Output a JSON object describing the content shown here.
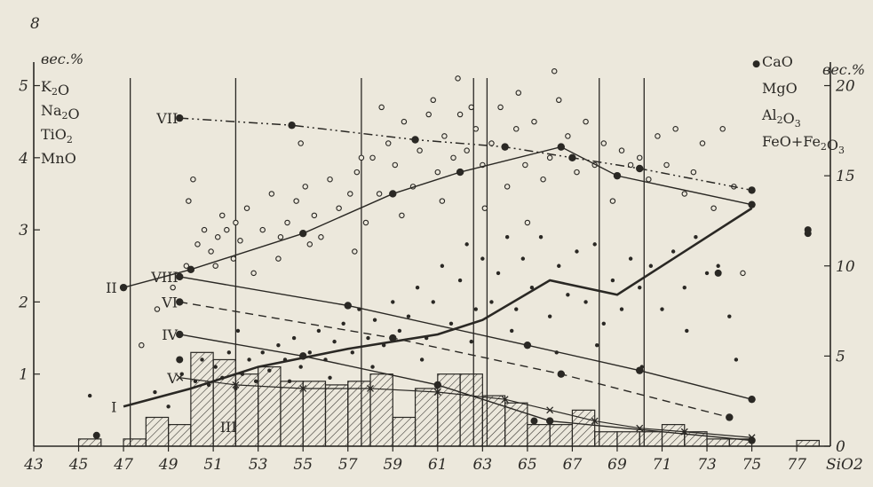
{
  "figure": {
    "page_number": "8"
  },
  "chart_data": {
    "type": "scatter",
    "xlabel": "SiO2",
    "x_ticks": [
      "43",
      "45",
      "47",
      "49",
      "51",
      "53",
      "55",
      "57",
      "59",
      "61",
      "63",
      "65",
      "67",
      "69",
      "71",
      "73",
      "75",
      "77"
    ],
    "xlim": [
      43,
      78.5
    ],
    "y_left": {
      "unit": "вес.%",
      "ticks": [
        "1",
        "2",
        "3",
        "4",
        "5"
      ],
      "ylim": [
        0,
        5.4
      ],
      "legend": [
        "K2O",
        "Na2O",
        "TiO2",
        "MnO"
      ]
    },
    "y_right": {
      "unit": "вес.%",
      "ticks": [
        "0",
        "5",
        "10",
        "15",
        "20"
      ],
      "ylim": [
        0,
        21.6
      ],
      "legend": [
        "CaO",
        "MgO",
        "Al2O3",
        "FeO+Fe2O3"
      ]
    },
    "vertical_lines_x": [
      47.3,
      52.0,
      57.6,
      62.6,
      63.2,
      68.2,
      70.2
    ],
    "histogram": {
      "label": "III",
      "bin_width": 1,
      "bins_x": [
        45.5,
        47.5,
        48.5,
        49.5,
        50.5,
        51.5,
        52.5,
        53.5,
        54.5,
        55.5,
        56.5,
        57.5,
        58.5,
        59.5,
        60.5,
        61.5,
        62.5,
        63.5,
        64.5,
        65.5,
        66.5,
        67.5,
        68.5,
        69.5,
        70.5,
        71.5,
        72.5,
        73.5,
        74.5,
        77.5
      ],
      "values": [
        0.1,
        0.1,
        0.4,
        0.3,
        1.3,
        1.2,
        1.0,
        1.1,
        0.9,
        0.9,
        0.85,
        0.9,
        1.0,
        0.4,
        0.8,
        1.0,
        1.0,
        0.7,
        0.6,
        0.3,
        0.3,
        0.5,
        0.2,
        0.2,
        0.2,
        0.3,
        0.2,
        0.1,
        0.1,
        0.08
      ]
    },
    "series": [
      {
        "name": "I",
        "axis": "left",
        "style": "bold",
        "x": [
          47,
          50,
          53,
          57,
          61,
          63,
          66,
          69,
          75
        ],
        "y": [
          0.55,
          0.8,
          1.1,
          1.35,
          1.55,
          1.75,
          2.3,
          2.1,
          3.3
        ]
      },
      {
        "name": "II",
        "axis": "left",
        "style": "solid",
        "x": [
          47,
          50,
          55,
          59,
          62,
          66.5,
          69,
          75
        ],
        "y": [
          2.2,
          2.45,
          2.95,
          3.5,
          3.8,
          4.15,
          3.75,
          3.35
        ]
      },
      {
        "name": "IV",
        "axis": "left",
        "style": "solid",
        "x": [
          49.5,
          55,
          61,
          66,
          75
        ],
        "y": [
          1.55,
          1.25,
          0.85,
          0.35,
          0.08
        ]
      },
      {
        "name": "V",
        "axis": "left",
        "style": "cross",
        "x": [
          49.5,
          52,
          55,
          58,
          61,
          64,
          66,
          68,
          70,
          72,
          75
        ],
        "y": [
          0.95,
          0.85,
          0.8,
          0.8,
          0.75,
          0.65,
          0.5,
          0.35,
          0.25,
          0.2,
          0.12
        ]
      },
      {
        "name": "VI",
        "axis": "left",
        "style": "dashed",
        "x": [
          49.5,
          59,
          66.5,
          74
        ],
        "y": [
          2.0,
          1.5,
          1.0,
          0.4
        ]
      },
      {
        "name": "VII",
        "axis": "left",
        "style": "dashdot",
        "x": [
          49.5,
          54.5,
          60,
          64,
          67,
          70,
          75
        ],
        "y": [
          4.55,
          4.45,
          4.25,
          4.15,
          4.0,
          3.85,
          3.55
        ]
      },
      {
        "name": "VIII",
        "axis": "left",
        "style": "solid",
        "x": [
          49.5,
          57,
          65,
          70,
          75
        ],
        "y": [
          2.35,
          1.95,
          1.4,
          1.05,
          0.65
        ]
      }
    ],
    "scatter_open": [
      [
        47.8,
        1.4
      ],
      [
        48.5,
        1.9
      ],
      [
        49.2,
        2.2
      ],
      [
        49.8,
        2.5
      ],
      [
        49.9,
        3.4
      ],
      [
        50.3,
        2.8
      ],
      [
        50.6,
        3.0
      ],
      [
        50.9,
        2.7
      ],
      [
        51.2,
        2.9
      ],
      [
        51.4,
        3.2
      ],
      [
        51.6,
        3.0
      ],
      [
        51.9,
        2.6
      ],
      [
        52.2,
        2.85
      ],
      [
        52.5,
        3.3
      ],
      [
        52.8,
        2.4
      ],
      [
        53.2,
        3.0
      ],
      [
        53.6,
        3.5
      ],
      [
        54.0,
        2.9
      ],
      [
        54.3,
        3.1
      ],
      [
        54.7,
        3.4
      ],
      [
        55.1,
        3.6
      ],
      [
        55.5,
        3.2
      ],
      [
        55.8,
        2.9
      ],
      [
        56.2,
        3.7
      ],
      [
        56.6,
        3.3
      ],
      [
        57.1,
        3.5
      ],
      [
        57.4,
        3.8
      ],
      [
        57.8,
        3.1
      ],
      [
        58.1,
        4.0
      ],
      [
        58.4,
        3.5
      ],
      [
        58.8,
        4.2
      ],
      [
        59.1,
        3.9
      ],
      [
        59.5,
        4.5
      ],
      [
        59.9,
        3.6
      ],
      [
        60.2,
        4.1
      ],
      [
        60.6,
        4.6
      ],
      [
        61.0,
        3.8
      ],
      [
        61.3,
        4.3
      ],
      [
        61.7,
        4.0
      ],
      [
        62.0,
        4.6
      ],
      [
        62.3,
        4.1
      ],
      [
        62.7,
        4.4
      ],
      [
        63.0,
        3.9
      ],
      [
        63.4,
        4.2
      ],
      [
        63.8,
        4.7
      ],
      [
        64.1,
        3.6
      ],
      [
        64.5,
        4.4
      ],
      [
        64.9,
        3.9
      ],
      [
        65.3,
        4.5
      ],
      [
        65.7,
        3.7
      ],
      [
        66.0,
        4.0
      ],
      [
        66.4,
        4.8
      ],
      [
        66.8,
        4.3
      ],
      [
        67.2,
        3.8
      ],
      [
        67.6,
        4.5
      ],
      [
        68.0,
        3.9
      ],
      [
        68.4,
        4.2
      ],
      [
        68.8,
        3.4
      ],
      [
        69.2,
        4.1
      ],
      [
        69.6,
        3.9
      ],
      [
        70.0,
        4.0
      ],
      [
        70.4,
        3.7
      ],
      [
        70.8,
        4.3
      ],
      [
        71.2,
        3.9
      ],
      [
        71.6,
        4.4
      ],
      [
        72.0,
        3.5
      ],
      [
        72.4,
        3.8
      ],
      [
        72.8,
        4.2
      ],
      [
        73.3,
        3.3
      ],
      [
        73.7,
        4.4
      ],
      [
        74.2,
        3.6
      ],
      [
        74.6,
        2.4
      ],
      [
        52.0,
        3.1
      ],
      [
        53.9,
        2.6
      ],
      [
        55.3,
        2.8
      ],
      [
        57.3,
        2.7
      ],
      [
        59.4,
        3.2
      ],
      [
        61.2,
        3.4
      ],
      [
        63.1,
        3.3
      ],
      [
        65.0,
        3.1
      ],
      [
        50.1,
        3.7
      ],
      [
        51.1,
        2.5
      ],
      [
        54.9,
        4.2
      ],
      [
        57.6,
        4.0
      ],
      [
        60.8,
        4.8
      ],
      [
        62.5,
        4.7
      ],
      [
        64.6,
        4.9
      ],
      [
        66.2,
        5.2
      ],
      [
        58.5,
        4.7
      ],
      [
        61.9,
        5.1
      ]
    ],
    "scatter_filled": [
      [
        45.5,
        0.7
      ],
      [
        48.4,
        0.75
      ],
      [
        49.0,
        0.55
      ],
      [
        49.6,
        1.0
      ],
      [
        50.2,
        0.9
      ],
      [
        50.5,
        1.2
      ],
      [
        50.8,
        0.85
      ],
      [
        51.1,
        1.1
      ],
      [
        51.4,
        0.95
      ],
      [
        51.7,
        1.3
      ],
      [
        52.0,
        0.8
      ],
      [
        52.3,
        1.0
      ],
      [
        52.6,
        1.2
      ],
      [
        52.9,
        0.9
      ],
      [
        53.2,
        1.3
      ],
      [
        53.5,
        1.05
      ],
      [
        53.9,
        1.4
      ],
      [
        54.2,
        1.2
      ],
      [
        54.6,
        1.5
      ],
      [
        54.9,
        1.1
      ],
      [
        55.3,
        1.3
      ],
      [
        55.7,
        1.6
      ],
      [
        56.0,
        1.2
      ],
      [
        56.4,
        1.45
      ],
      [
        56.8,
        1.7
      ],
      [
        57.2,
        1.3
      ],
      [
        57.5,
        1.9
      ],
      [
        57.9,
        1.5
      ],
      [
        58.2,
        1.75
      ],
      [
        58.6,
        1.4
      ],
      [
        59.0,
        2.0
      ],
      [
        59.3,
        1.6
      ],
      [
        59.7,
        1.8
      ],
      [
        60.1,
        2.2
      ],
      [
        60.5,
        1.5
      ],
      [
        60.8,
        2.0
      ],
      [
        61.2,
        2.5
      ],
      [
        61.6,
        1.7
      ],
      [
        62.0,
        2.3
      ],
      [
        62.3,
        2.8
      ],
      [
        62.7,
        1.9
      ],
      [
        63.0,
        2.6
      ],
      [
        63.4,
        2.0
      ],
      [
        63.7,
        2.4
      ],
      [
        64.1,
        2.9
      ],
      [
        64.5,
        1.9
      ],
      [
        64.8,
        2.6
      ],
      [
        65.2,
        2.2
      ],
      [
        65.6,
        2.9
      ],
      [
        66.0,
        1.8
      ],
      [
        66.4,
        2.5
      ],
      [
        66.8,
        2.1
      ],
      [
        67.2,
        2.7
      ],
      [
        67.6,
        2.0
      ],
      [
        68.0,
        2.8
      ],
      [
        68.4,
        1.7
      ],
      [
        68.8,
        2.3
      ],
      [
        69.2,
        1.9
      ],
      [
        69.6,
        2.6
      ],
      [
        70.0,
        2.2
      ],
      [
        70.5,
        2.5
      ],
      [
        71.0,
        1.9
      ],
      [
        71.5,
        2.7
      ],
      [
        72.0,
        2.2
      ],
      [
        72.5,
        2.9
      ],
      [
        73.0,
        2.4
      ],
      [
        73.5,
        2.5
      ],
      [
        74.0,
        1.8
      ],
      [
        52.1,
        1.6
      ],
      [
        54.4,
        0.9
      ],
      [
        56.2,
        0.95
      ],
      [
        58.1,
        1.1
      ],
      [
        60.3,
        1.2
      ],
      [
        62.5,
        1.45
      ],
      [
        64.3,
        1.6
      ],
      [
        66.3,
        1.3
      ],
      [
        68.1,
        1.4
      ],
      [
        70.1,
        1.1
      ],
      [
        72.1,
        1.6
      ],
      [
        74.3,
        1.2
      ]
    ],
    "big_dots": [
      [
        75.2,
        5.3
      ],
      [
        77.5,
        3.0
      ],
      [
        77.5,
        2.95
      ],
      [
        49.5,
        1.2
      ],
      [
        45.8,
        0.15
      ],
      [
        65.3,
        0.35
      ],
      [
        73.5,
        2.4
      ]
    ]
  }
}
